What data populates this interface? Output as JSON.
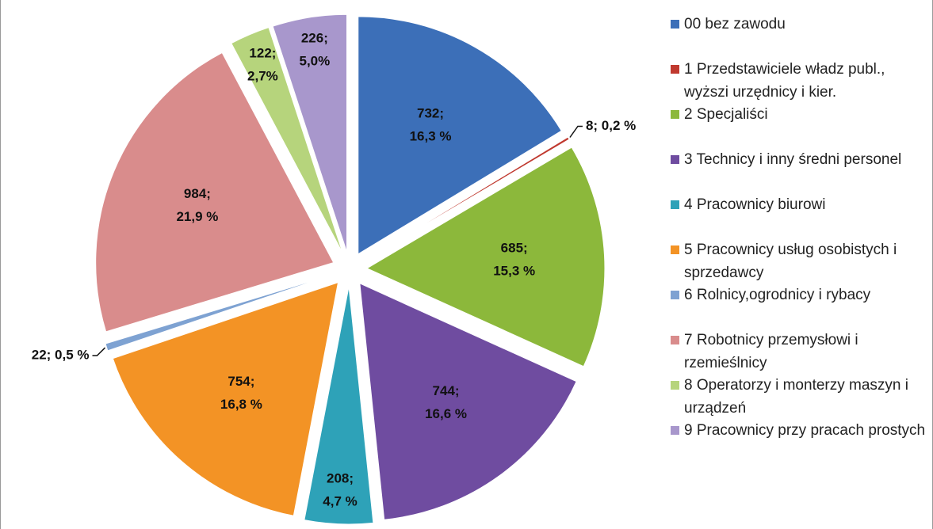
{
  "chart_data": {
    "type": "pie",
    "categories": [
      "00 bez zawodu",
      "1  Przedstawiciele władz publ., wyższi urzędnicy i kier.",
      "2 Specjaliści",
      "3 Technicy i inny średni personel",
      "4 Pracownicy biurowi",
      "5 Pracownicy usług osobistych i sprzedawcy",
      "6 Rolnicy,ogrodnicy i rybacy",
      "7 Robotnicy przemysłowi i rzemieślnicy",
      "8 Operatorzy i monterzy maszyn i urządzeń",
      "9 Pracownicy przy pracach prostych"
    ],
    "values": [
      732,
      8,
      685,
      744,
      208,
      754,
      22,
      984,
      122,
      226
    ],
    "value_labels": [
      [
        "732;",
        "16,3 %"
      ],
      [
        "8; 0,2 %"
      ],
      [
        "685;",
        "15,3 %"
      ],
      [
        "744;",
        "16,6 %"
      ],
      [
        "208;",
        "4,7 %"
      ],
      [
        "754;",
        "16,8 %"
      ],
      [
        "22; 0,5 %"
      ],
      [
        "984;",
        "21,9 %"
      ],
      [
        "122;",
        "2,7%"
      ],
      [
        "226;",
        "5,0%"
      ]
    ],
    "colors": [
      "#3c6fb8",
      "#c0392f",
      "#8cb83b",
      "#6f4ca0",
      "#2ea2b8",
      "#f39325",
      "#7ea2d2",
      "#d98c8c",
      "#b6d47c",
      "#a897cc"
    ],
    "legend": "right"
  }
}
